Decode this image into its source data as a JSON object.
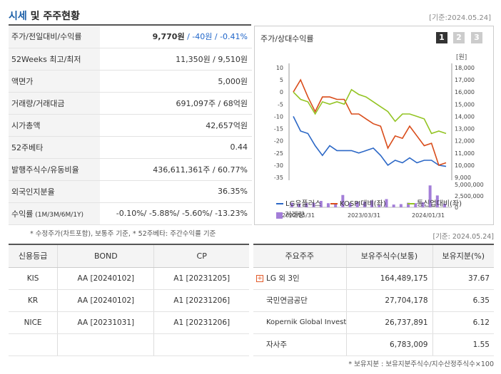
{
  "header": {
    "title_accent": "시세",
    "title_rest": " 및 주주현황",
    "date": "[기준:2024.05.24]"
  },
  "info_rows": [
    {
      "label": "주가/전일대비/수익률",
      "v1": "9,770원",
      "v2": " / -40원",
      "v3": " / -0.41%"
    },
    {
      "label": "52Weeks 최고/최저",
      "value": "11,350원 / 9,510원"
    },
    {
      "label": "액면가",
      "value": "5,000원"
    },
    {
      "label": "거래량/거래대금",
      "value": "691,097주 / 68억원"
    },
    {
      "label": "시가총액",
      "value": "42,657억원"
    },
    {
      "label": "52주베타",
      "value": "0.44"
    },
    {
      "label": "발행주식수/유동비율",
      "value": "436,611,361주 / 60.77%"
    },
    {
      "label": "외국인지분율",
      "value": "36.35%"
    },
    {
      "label": "수익률",
      "label_small": " (1M/3M/6M/1Y)",
      "value": "-0.10%/ -5.88%/ -5.60%/ -13.23%"
    }
  ],
  "notes": "* 수정주가(차트포함), 보통주 기준, * 52주베타: 주간수익률 기준",
  "date2": "[기준: 2024.05.24]",
  "chart": {
    "title": "주가/상대수익률",
    "pages": [
      "1",
      "2",
      "3"
    ],
    "unit": "[원]",
    "left_ticks": [
      "10",
      "5",
      "0",
      "-5",
      "-10",
      "-15",
      "-20",
      "-25",
      "-30",
      "-35"
    ],
    "right_ticks": [
      "18,000",
      "17,000",
      "16,000",
      "15,000",
      "14,000",
      "13,000",
      "12,000",
      "11,000",
      "10,000",
      "9,000"
    ],
    "vol_ticks": [
      "5,000,000",
      "2,500,000",
      "0"
    ],
    "x_ticks": [
      "2022/05/31",
      "2023/03/31",
      "2024/01/31"
    ],
    "legend": [
      "LG유플러스",
      "KOSPI대비(좌)",
      "통신업대비(좌)",
      "거래량"
    ],
    "colors": {
      "lg": "#2b67c6",
      "kospi": "#d94c1a",
      "tel": "#93c423",
      "vol": "#a37ed8"
    }
  },
  "chart_data": {
    "type": "line",
    "series": [
      {
        "name": "LG유플러스",
        "values": [
          -10,
          -16,
          -17,
          -22,
          -26,
          -22,
          -24,
          -24,
          -24,
          -25,
          -24,
          -23,
          -26,
          -30,
          -28,
          -29,
          -27,
          -29,
          -28,
          -28,
          -30,
          -30.5
        ]
      },
      {
        "name": "KOSPI대비(좌)",
        "values": [
          0,
          5,
          -2,
          -8,
          -2,
          -2,
          -3,
          -3,
          -9,
          -9,
          -11,
          -13,
          -14,
          -23,
          -18,
          -19,
          -14,
          -18,
          -22,
          -21,
          -30,
          -29
        ]
      },
      {
        "name": "통신업대비(좌)",
        "values": [
          0,
          -3,
          -4,
          -9,
          -4,
          -5,
          -4,
          -5,
          1,
          -1,
          -2,
          -4,
          -6,
          -8,
          -12,
          -9,
          -9,
          -10,
          -11,
          -17,
          -16,
          -17
        ]
      },
      {
        "name": "거래량",
        "values": [
          1.0,
          0.8,
          0.9,
          1.0,
          1.4,
          0.9,
          0.8,
          2.7,
          1.0,
          1.2,
          1.2,
          1.5,
          0.5,
          1.8,
          0.6,
          0.7,
          1.0,
          0.9,
          1.1,
          4.8,
          2.6,
          0.8
        ]
      }
    ],
    "ylim_left": [
      -35,
      10
    ],
    "ylim_right": [
      9000,
      18000
    ],
    "x_ticks": [
      "2022/05/31",
      "2023/03/31",
      "2024/01/31"
    ]
  },
  "credit": {
    "headers": [
      "신용등급",
      "BOND",
      "CP"
    ],
    "rows": [
      [
        "KIS",
        "AA [20240102]",
        "A1 [20231205]"
      ],
      [
        "KR",
        "AA [20240102]",
        "A1 [20231206]"
      ],
      [
        "NICE",
        "AA [20231031]",
        "A1 [20231206]"
      ],
      [
        "",
        "",
        ""
      ]
    ]
  },
  "holders": {
    "headers": [
      "주요주주",
      "보유주식수(보통)",
      "보유지분(%)"
    ],
    "rows": [
      [
        "LG 외 3인",
        "164,489,175",
        "37.67"
      ],
      [
        "국민연금공단",
        "27,704,178",
        "6.35"
      ],
      [
        "Kopernik Global Invest…",
        "26,737,891",
        "6.12"
      ],
      [
        "자사주",
        "6,783,009",
        "1.55"
      ]
    ]
  },
  "note3": "* 보유지분 : 보유지분주식수/지수산정주식수×100"
}
